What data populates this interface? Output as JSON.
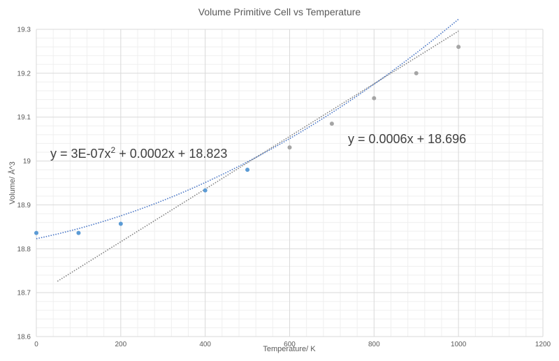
{
  "chart_data": {
    "type": "scatter",
    "title": "Volume Primitive Cell vs Temperature",
    "xlabel": "Temperature/ K",
    "ylabel": "Volume/  Å^3",
    "xlim": [
      0,
      1200
    ],
    "ylim": [
      18.6,
      19.3
    ],
    "xticks": [
      "0",
      "200",
      "400",
      "600",
      "800",
      "1000",
      "1200"
    ],
    "yticks": [
      "18.6",
      "18.7",
      "18.8",
      "18.9",
      "19",
      "19.1",
      "19.2",
      "19.3"
    ],
    "grid": true,
    "series": [
      {
        "color": "#5b9bd5",
        "x": [
          0,
          100,
          200,
          400,
          500
        ],
        "y": [
          18.836,
          18.836,
          18.857,
          18.933,
          18.98
        ]
      },
      {
        "color": "#a5a5a5",
        "x": [
          600,
          700,
          800,
          900,
          1000
        ],
        "y": [
          19.031,
          19.085,
          19.143,
          19.2,
          19.26
        ]
      }
    ],
    "trendlines": [
      {
        "kind": "polynomial",
        "color": "#4472c4",
        "coefficients": [
          3e-07,
          0.0002,
          18.823
        ],
        "x_range": [
          0,
          1000
        ],
        "equation_base": "y = 3E-07x",
        "equation_sup": "2",
        "equation_rest": " + 0.0002x + 18.823"
      },
      {
        "kind": "linear",
        "color": "#808080",
        "coefficients": [
          0.0006,
          18.696
        ],
        "x_range": [
          50,
          1000
        ],
        "equation": "y = 0.0006x + 18.696"
      }
    ]
  }
}
